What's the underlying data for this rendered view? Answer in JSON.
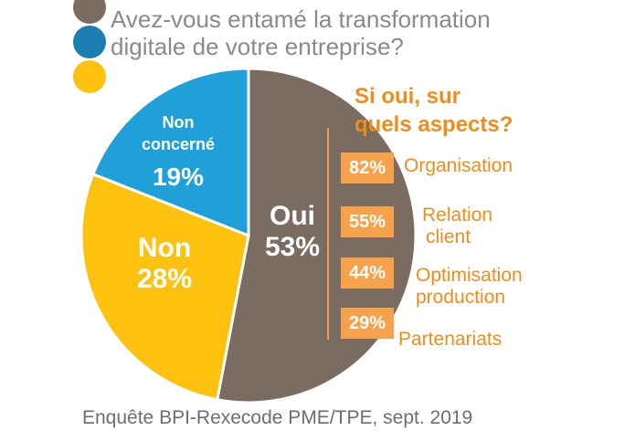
{
  "title_line1": "Avez-vous entamé la transformation",
  "title_line2": "digitale de votre entreprise?",
  "chart_data": {
    "type": "pie",
    "title": "Avez-vous entamé la transformation digitale de votre entreprise?",
    "slices": [
      {
        "label": "Oui",
        "value": 53,
        "display": "53%",
        "color": "#7b6c62"
      },
      {
        "label": "Non",
        "value": 28,
        "display": "28%",
        "color": "#fdc10f"
      },
      {
        "label_lines": [
          "Non",
          "concerné"
        ],
        "value": 19,
        "display": "19%",
        "color": "#1fa0d8"
      }
    ],
    "sub_chart": {
      "type": "table",
      "title_line1": "Si oui, sur",
      "title_line2": "quels aspects?",
      "rows": [
        {
          "value": 82,
          "display": "82%",
          "label_lines": [
            "Organisation"
          ]
        },
        {
          "value": 55,
          "display": "55%",
          "label_lines": [
            "Relation",
            "client"
          ]
        },
        {
          "value": 44,
          "display": "44%",
          "label_lines": [
            "Optimisation",
            "production"
          ]
        },
        {
          "value": 29,
          "display": "29%",
          "label_lines": [
            "Partenariats"
          ]
        }
      ]
    }
  },
  "source": "Enquête BPI-Rexecode PME/TPE, sept. 2019"
}
